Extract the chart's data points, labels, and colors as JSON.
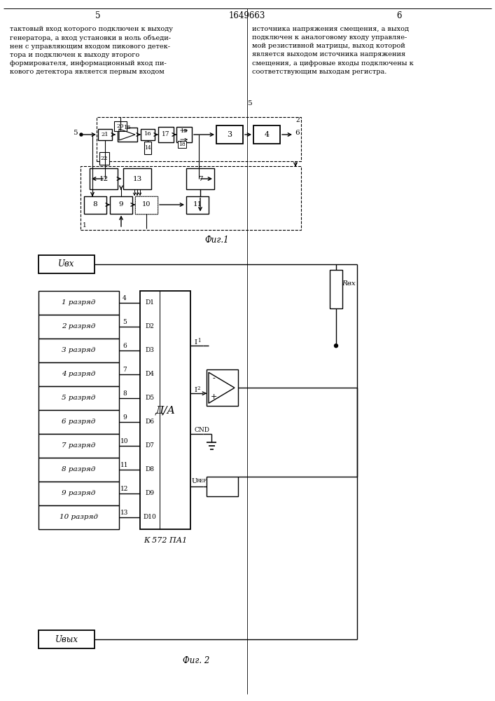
{
  "page_left": "5",
  "page_right": "6",
  "patent_num": "1649663",
  "text_left": "тактовый вход которого подключен к выходу\nгенератора, а вход установки в ноль объеди-\nнен с управляющим входом пикового детек-\nтора и подключен к выходу второго\nформирователя, информационный вход пи-\nкового детектора является первым входом",
  "text_right": "источника напряжения смещения, а выход\nподключен к аналоговому входу управляе-\nмой резистивной матрицы, выход которой\nявляется выходом источника напряжения\nсмещения, а цифровые входы подключены к\nсоответствующим выходам регистра.",
  "fig1_caption": "Фиг.1",
  "fig2_caption": "Фиг. 2",
  "bit_labels": [
    "1 разряд",
    "2 разряд",
    "3 разряд",
    "4 разряд",
    "5 разряд",
    "6 разряд",
    "7 разряд",
    "8 разряд",
    "9 разряд",
    "10 разряд"
  ],
  "pin_numbers": [
    "4",
    "5",
    "6",
    "7",
    "8",
    "9",
    "10",
    "11",
    "12",
    "13"
  ],
  "da_pins": [
    "D1",
    "D2",
    "D3",
    "D4",
    "D5",
    "D6",
    "D7",
    "D8",
    "D9",
    "D10"
  ],
  "ic_label": "Д/А",
  "ic_name": "К 572 ПА1",
  "u_in": "Uвх",
  "u_out": "Uвых",
  "r_label": "Rвх",
  "i1_label": "I1",
  "i2_label": "I2",
  "cnd_label": "CND",
  "uref_label": "UREF"
}
